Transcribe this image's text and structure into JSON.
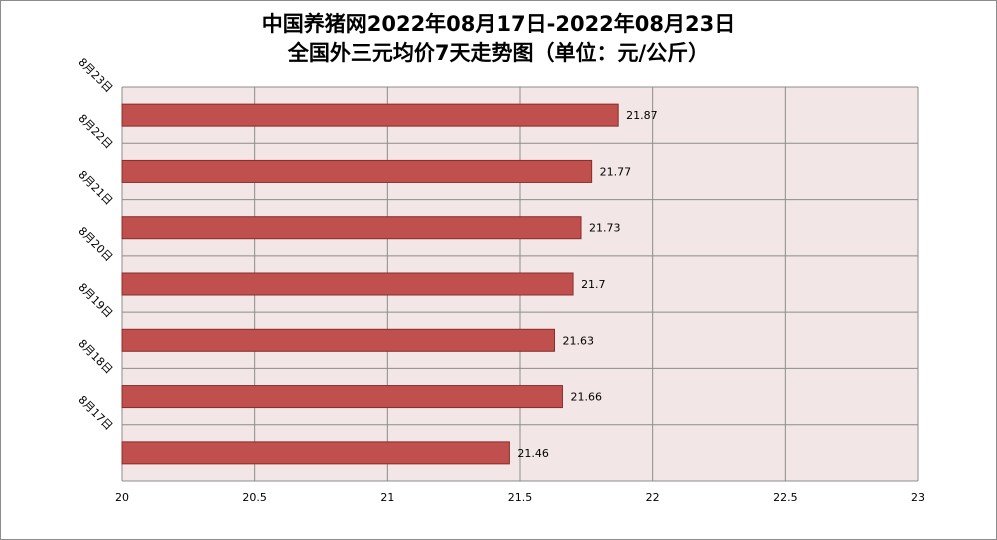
{
  "chart_data": {
    "type": "bar",
    "orientation": "horizontal",
    "title_line1": "中国养猪网2022年08月17日-2022年08月23日",
    "title_line2": "全国外三元均价7天走势图（单位：元/公斤）",
    "categories": [
      "8月17日",
      "8月18日",
      "8月19日",
      "8月20日",
      "8月21日",
      "8月22日",
      "8月23日"
    ],
    "values": [
      21.46,
      21.66,
      21.63,
      21.7,
      21.73,
      21.77,
      21.87
    ],
    "data_labels": [
      "21.46",
      "21.66",
      "21.63",
      "21.7",
      "21.73",
      "21.77",
      "21.87"
    ],
    "xlim": [
      20,
      23
    ],
    "x_ticks": [
      20,
      20.5,
      21,
      21.5,
      22,
      22.5,
      23
    ],
    "x_tick_labels": [
      "20",
      "20.5",
      "21",
      "21.5",
      "22",
      "22.5",
      "23"
    ],
    "grid": true,
    "legend": "none",
    "colors": {
      "bar_fill": "#c0504d",
      "bar_stroke": "#8b2c2a",
      "plot_bg": "#f2e6e6",
      "grid": "#8c8c8c"
    }
  }
}
